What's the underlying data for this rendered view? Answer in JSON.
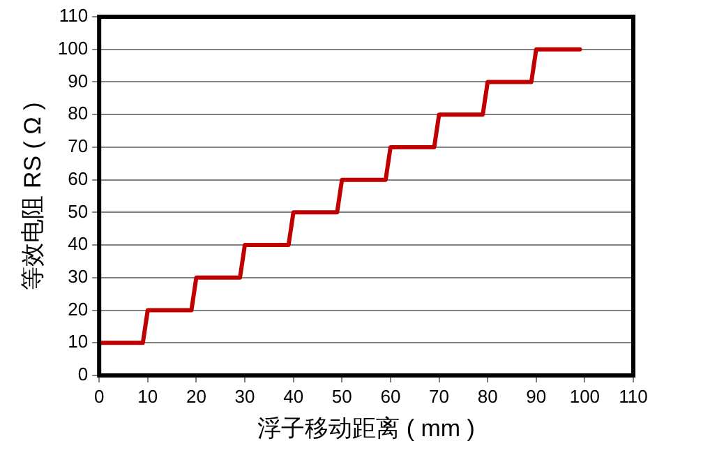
{
  "chart_data": {
    "type": "line",
    "xlabel": "浮子移动距离 ( mm )",
    "ylabel": "等效电阻 RS ( Ω )",
    "x": [
      0,
      9,
      10,
      19,
      20,
      29,
      30,
      39,
      40,
      49,
      50,
      59,
      60,
      69,
      70,
      79,
      80,
      89,
      90,
      99
    ],
    "series": [
      {
        "color": "#c00000",
        "values": [
          10,
          10,
          20,
          20,
          30,
          30,
          40,
          40,
          50,
          50,
          60,
          60,
          70,
          70,
          80,
          80,
          90,
          90,
          100,
          100
        ]
      }
    ],
    "xlim": [
      0,
      110
    ],
    "xticks": [
      0,
      10,
      20,
      30,
      40,
      50,
      60,
      70,
      80,
      90,
      100,
      110
    ],
    "ylim": [
      0,
      110
    ],
    "yticks": [
      0,
      10,
      20,
      30,
      40,
      50,
      60,
      70,
      80,
      90,
      100,
      110
    ],
    "grid": "y",
    "legend": false,
    "marker": "none",
    "line_style": "solid"
  }
}
